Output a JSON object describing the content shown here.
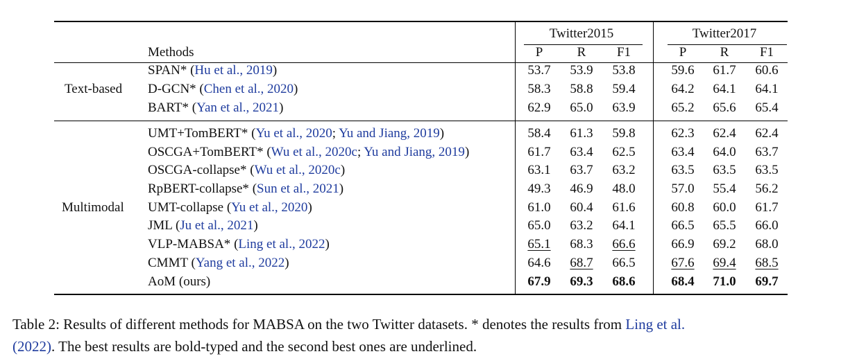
{
  "header": {
    "methods": "Methods",
    "group1": "Twitter2015",
    "group2": "Twitter2017",
    "metrics": [
      "P",
      "R",
      "F1",
      "P",
      "R",
      "F1"
    ]
  },
  "sections": [
    {
      "label": "Text-based",
      "rows": [
        {
          "method": "SPAN*",
          "cite": [
            "Hu et al., 2019"
          ],
          "values": [
            "53.7",
            "53.9",
            "53.8",
            "59.6",
            "61.7",
            "60.6"
          ],
          "bold": [],
          "underline": []
        },
        {
          "method": "D-GCN*",
          "cite": [
            "Chen et al., 2020"
          ],
          "values": [
            "58.3",
            "58.8",
            "59.4",
            "64.2",
            "64.1",
            "64.1"
          ],
          "bold": [],
          "underline": []
        },
        {
          "method": "BART*",
          "cite": [
            "Yan et al., 2021"
          ],
          "values": [
            "62.9",
            "65.0",
            "63.9",
            "65.2",
            "65.6",
            "65.4"
          ],
          "bold": [],
          "underline": []
        }
      ]
    },
    {
      "label": "Multimodal",
      "rows": [
        {
          "method": "UMT+TomBERT*",
          "cite": [
            "Yu et al., 2020",
            "Yu and Jiang, 2019"
          ],
          "values": [
            "58.4",
            "61.3",
            "59.8",
            "62.3",
            "62.4",
            "62.4"
          ],
          "bold": [],
          "underline": []
        },
        {
          "method": "OSCGA+TomBERT*",
          "cite": [
            "Wu et al., 2020c",
            "Yu and Jiang, 2019"
          ],
          "values": [
            "61.7",
            "63.4",
            "62.5",
            "63.4",
            "64.0",
            "63.7"
          ],
          "bold": [],
          "underline": []
        },
        {
          "method": "OSCGA-collapse*",
          "cite": [
            "Wu et al., 2020c"
          ],
          "values": [
            "63.1",
            "63.7",
            "63.2",
            "63.5",
            "63.5",
            "63.5"
          ],
          "bold": [],
          "underline": []
        },
        {
          "method": "RpBERT-collapse*",
          "cite": [
            "Sun et al., 2021"
          ],
          "values": [
            "49.3",
            "46.9",
            "48.0",
            "57.0",
            "55.4",
            "56.2"
          ],
          "bold": [],
          "underline": []
        },
        {
          "method": "UMT-collapse",
          "cite": [
            "Yu et al., 2020"
          ],
          "values": [
            "61.0",
            "60.4",
            "61.6",
            "60.8",
            "60.0",
            "61.7"
          ],
          "bold": [],
          "underline": []
        },
        {
          "method": "JML",
          "cite": [
            "Ju et al., 2021"
          ],
          "values": [
            "65.0",
            "63.2",
            "64.1",
            "66.5",
            "65.5",
            "66.0"
          ],
          "bold": [],
          "underline": []
        },
        {
          "method": "VLP-MABSA*",
          "cite": [
            "Ling et al., 2022"
          ],
          "values": [
            "65.1",
            "68.3",
            "66.6",
            "66.9",
            "69.2",
            "68.0"
          ],
          "bold": [],
          "underline": [
            0,
            2
          ]
        },
        {
          "method": "CMMT",
          "cite": [
            "Yang et al., 2022"
          ],
          "values": [
            "64.6",
            "68.7",
            "66.5",
            "67.6",
            "69.4",
            "68.5"
          ],
          "bold": [],
          "underline": [
            1,
            3,
            4,
            5
          ]
        },
        {
          "method": "AoM (ours)",
          "cite": [],
          "values": [
            "67.9",
            "69.3",
            "68.6",
            "68.4",
            "71.0",
            "69.7"
          ],
          "bold": [
            0,
            1,
            2,
            3,
            4,
            5
          ],
          "underline": []
        }
      ]
    }
  ],
  "caption": {
    "text1": "Table 2: Results of different methods for MABSA on the two Twitter datasets. * denotes the results from ",
    "cite_a": "Ling et al.",
    "cite_b": "(2022)",
    "text2": ". The best results are bold-typed and the second best ones are underlined."
  }
}
